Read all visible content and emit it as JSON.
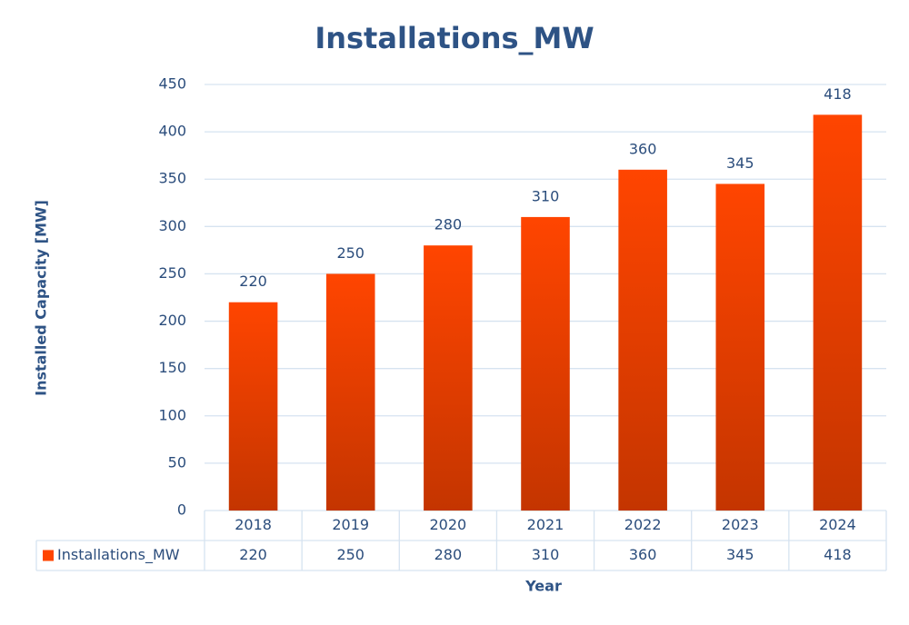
{
  "chart_data": {
    "type": "bar",
    "title": "Installations_MW",
    "x_label": "Year",
    "y_label": "Installed Capacity [MW]",
    "categories": [
      "2018",
      "2019",
      "2020",
      "2021",
      "2022",
      "2023",
      "2024"
    ],
    "series": [
      {
        "name": "Installations_MW",
        "color": "#ff4500",
        "values": [
          220,
          250,
          280,
          310,
          360,
          345,
          418
        ]
      }
    ],
    "ylim": [
      0,
      450
    ],
    "yticks": [
      0,
      50,
      100,
      150,
      200,
      250,
      300,
      350,
      400,
      450
    ],
    "grid": true,
    "data_labels": true,
    "data_table": true
  }
}
